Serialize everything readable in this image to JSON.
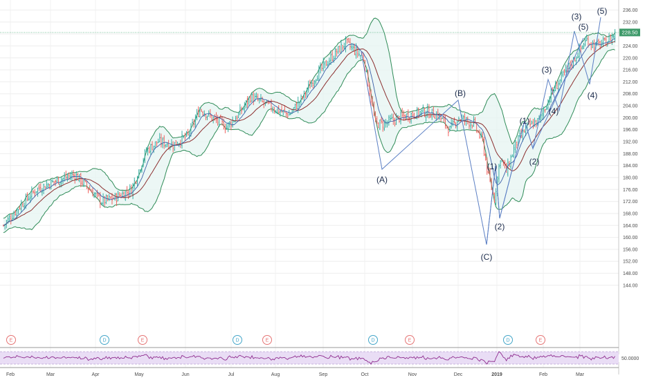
{
  "chart_data": {
    "type": "line",
    "title": "",
    "price_axis": {
      "ticks": [
        "236.00",
        "232.00",
        "228.00",
        "224.00",
        "220.00",
        "216.00",
        "212.00",
        "208.00",
        "204.00",
        "200.00",
        "196.00",
        "192.00",
        "188.00",
        "184.00",
        "180.00",
        "176.00",
        "172.00",
        "168.00",
        "164.00",
        "160.00",
        "156.00",
        "152.00",
        "148.00",
        "144.00"
      ],
      "ylim": [
        144,
        237
      ]
    },
    "last_price": {
      "label": "228.50",
      "value": 228.5
    },
    "rsi_axis": {
      "label": "50.0000",
      "value": 50
    },
    "x_ticks": [
      "Feb",
      "Mar",
      "Apr",
      "May",
      "Jun",
      "Jul",
      "Aug",
      "Sep",
      "Oct",
      "Nov",
      "Dec",
      "2019",
      "Feb",
      "Mar"
    ],
    "events": [
      {
        "label": "E",
        "type": "earnings"
      },
      {
        "label": "D",
        "type": "dividend"
      },
      {
        "label": "E",
        "type": "earnings"
      },
      {
        "label": "D",
        "type": "dividend"
      },
      {
        "label": "E",
        "type": "earnings"
      },
      {
        "label": "D",
        "type": "dividend"
      },
      {
        "label": "E",
        "type": "earnings"
      },
      {
        "label": "D",
        "type": "dividend"
      },
      {
        "label": "E",
        "type": "earnings"
      }
    ],
    "wave_labels": [
      "(A)",
      "(B)",
      "(C)",
      "(1)",
      "(2)",
      "(1)",
      "(2)",
      "(3)",
      "(4)",
      "(3)",
      "(4)",
      "(5)",
      "(5)"
    ],
    "colors": {
      "up_bar": "#26a69a",
      "down_bar": "#ef5350",
      "band": "#2e8b57",
      "band_fill": "#e6f4f1",
      "basis": "#8b2e2e",
      "wave_line": "#5b7fc4",
      "rsi_line": "#8e2b8e",
      "rsi_band_fill": "#e9ddf5",
      "earnings": "#e57373",
      "dividend": "#42a5c8"
    }
  }
}
